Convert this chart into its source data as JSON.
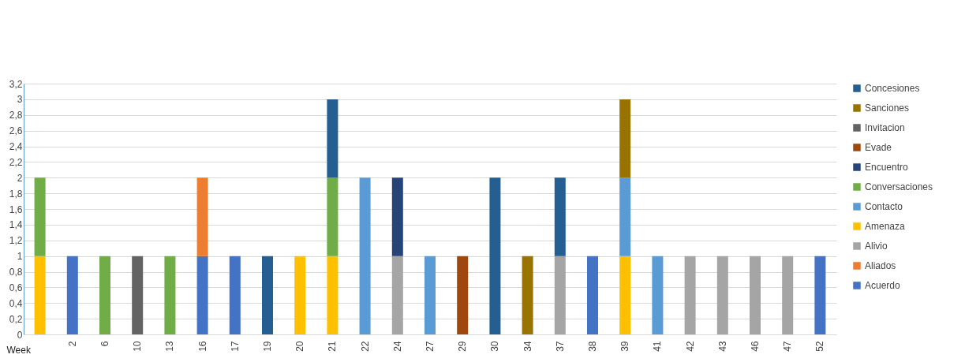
{
  "chart_data": {
    "type": "bar",
    "stacked": true,
    "xlabel": "Week",
    "categories": [
      null,
      "2",
      "6",
      "10",
      "13",
      "16",
      "17",
      "19",
      "20",
      "21",
      "22",
      "24",
      "27",
      "29",
      "30",
      "34",
      "37",
      "38",
      "39",
      "41",
      "42",
      "43",
      "46",
      "47",
      "52"
    ],
    "series": [
      {
        "name": "Acuerdo",
        "color": "#4472c4",
        "values": [
          null,
          1,
          null,
          null,
          null,
          1,
          1,
          null,
          null,
          null,
          null,
          null,
          null,
          null,
          null,
          null,
          null,
          1,
          null,
          null,
          null,
          null,
          null,
          null,
          1
        ]
      },
      {
        "name": "Aliados",
        "color": "#ed7d31",
        "values": [
          null,
          null,
          null,
          null,
          null,
          1,
          null,
          null,
          null,
          null,
          null,
          null,
          null,
          null,
          null,
          null,
          null,
          null,
          null,
          null,
          null,
          null,
          null,
          null,
          null
        ]
      },
      {
        "name": "Alivio",
        "color": "#a5a5a5",
        "values": [
          null,
          null,
          null,
          null,
          null,
          null,
          null,
          null,
          null,
          null,
          null,
          1,
          null,
          null,
          null,
          null,
          1,
          null,
          null,
          null,
          1,
          1,
          1,
          1,
          null
        ]
      },
      {
        "name": "Amenaza",
        "color": "#ffc000",
        "values": [
          1,
          null,
          null,
          null,
          null,
          null,
          null,
          null,
          1,
          1,
          null,
          null,
          null,
          null,
          null,
          null,
          null,
          null,
          1,
          null,
          null,
          null,
          null,
          null,
          null
        ]
      },
      {
        "name": "Contacto",
        "color": "#5b9bd5",
        "values": [
          null,
          null,
          null,
          null,
          null,
          null,
          null,
          null,
          null,
          null,
          2,
          null,
          1,
          null,
          null,
          null,
          null,
          null,
          1,
          1,
          null,
          null,
          null,
          null,
          null
        ]
      },
      {
        "name": "Conversaciones",
        "color": "#70ad47",
        "values": [
          1,
          null,
          1,
          null,
          1,
          null,
          null,
          null,
          null,
          1,
          null,
          null,
          null,
          null,
          null,
          null,
          null,
          null,
          null,
          null,
          null,
          null,
          null,
          null,
          null
        ]
      },
      {
        "name": "Encuentro",
        "color": "#264478",
        "values": [
          null,
          null,
          null,
          null,
          null,
          null,
          null,
          null,
          null,
          null,
          null,
          1,
          null,
          null,
          null,
          null,
          null,
          null,
          null,
          null,
          null,
          null,
          null,
          null,
          null
        ]
      },
      {
        "name": "Evade",
        "color": "#9e480e",
        "values": [
          null,
          null,
          null,
          null,
          null,
          null,
          null,
          null,
          null,
          null,
          null,
          null,
          null,
          1,
          null,
          null,
          null,
          null,
          null,
          null,
          null,
          null,
          null,
          null,
          null
        ]
      },
      {
        "name": "Invitacion",
        "color": "#636363",
        "values": [
          null,
          null,
          null,
          1,
          null,
          null,
          null,
          null,
          null,
          null,
          null,
          null,
          null,
          null,
          null,
          null,
          null,
          null,
          null,
          null,
          null,
          null,
          null,
          null,
          null
        ]
      },
      {
        "name": "Sanciones",
        "color": "#997300",
        "values": [
          null,
          null,
          null,
          null,
          null,
          null,
          null,
          null,
          null,
          null,
          null,
          null,
          null,
          null,
          null,
          1,
          null,
          null,
          1,
          null,
          null,
          null,
          null,
          null,
          null
        ]
      },
      {
        "name": "Concesiones",
        "color": "#255e91",
        "values": [
          null,
          null,
          null,
          null,
          null,
          null,
          null,
          1,
          null,
          1,
          null,
          null,
          null,
          null,
          2,
          null,
          1,
          null,
          null,
          null,
          null,
          null,
          null,
          null,
          null
        ]
      }
    ],
    "ylim": [
      0,
      3.2
    ],
    "yticks": [
      0,
      {
        "value": 0.2,
        "label": "0,2"
      },
      {
        "value": 0.4,
        "label": "0,4"
      },
      {
        "value": 0.6,
        "label": "0,6"
      },
      {
        "value": 0.8,
        "label": "0,8"
      },
      1,
      {
        "value": 1.2,
        "label": "1,2"
      },
      {
        "value": 1.4,
        "label": "1,4"
      },
      {
        "value": 1.6,
        "label": "1,6"
      },
      {
        "value": 1.8,
        "label": "1,8"
      },
      2,
      {
        "value": 2.2,
        "label": "2,2"
      },
      {
        "value": 2.4,
        "label": "2,4"
      },
      {
        "value": 2.6,
        "label": "2,6"
      },
      {
        "value": 2.8,
        "label": "2,8"
      },
      3,
      {
        "value": 3.2,
        "label": "3,2"
      }
    ],
    "grid": "y",
    "legend": "right"
  }
}
